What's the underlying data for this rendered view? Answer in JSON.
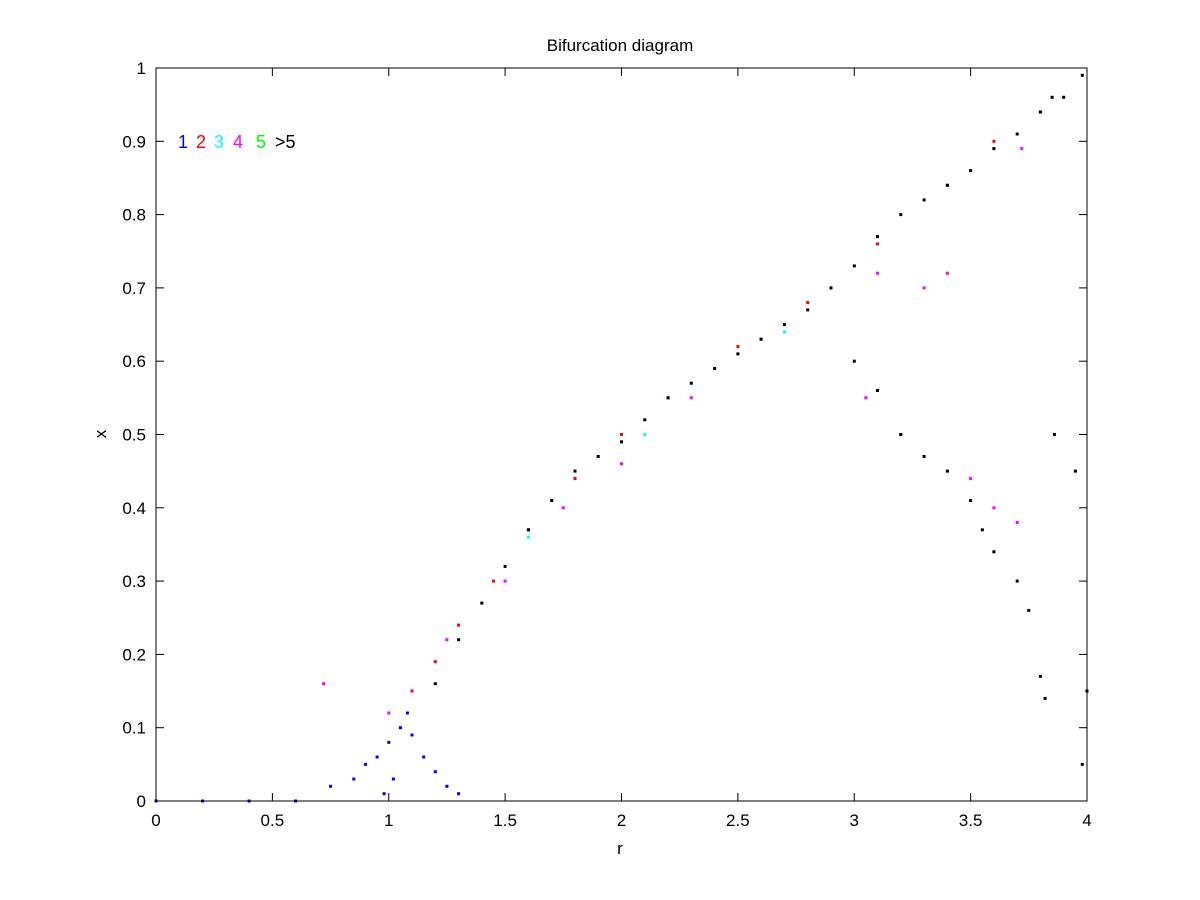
{
  "chart_data": {
    "type": "scatter",
    "title": "Bifurcation diagram",
    "xlabel": "r",
    "ylabel": "x",
    "xlim": [
      0,
      4
    ],
    "ylim": [
      0,
      1
    ],
    "x_ticks": [
      "0",
      "0.5",
      "1",
      "1.5",
      "2",
      "2.5",
      "3",
      "3.5",
      "4"
    ],
    "y_ticks": [
      "0",
      "0.1",
      "0.2",
      "0.3",
      "0.4",
      "0.5",
      "0.6",
      "0.7",
      "0.8",
      "0.9",
      "1"
    ],
    "grid": false,
    "legend_position": "top-left",
    "legend": [
      {
        "label": "1",
        "color": "#0000ff"
      },
      {
        "label": "2",
        "color": "#ff0000"
      },
      {
        "label": "3",
        "color": "#00ffff"
      },
      {
        "label": "4",
        "color": "#ff00ff"
      },
      {
        "label": "5",
        "color": "#00ff00"
      },
      {
        "label": ">5",
        "color": "#000000"
      }
    ],
    "series": [
      {
        "color": "#0000ff",
        "points": [
          [
            0,
            0
          ],
          [
            0.2,
            0
          ],
          [
            0.4,
            0
          ],
          [
            0.6,
            0
          ],
          [
            0.75,
            0.02
          ],
          [
            0.85,
            0.03
          ],
          [
            0.9,
            0.05
          ],
          [
            0.95,
            0.06
          ],
          [
            1.0,
            0.08
          ],
          [
            1.02,
            0.03
          ],
          [
            1.05,
            0.1
          ],
          [
            1.1,
            0.09
          ],
          [
            1.15,
            0.06
          ],
          [
            1.2,
            0.04
          ],
          [
            1.25,
            0.02
          ],
          [
            1.3,
            0.01
          ],
          [
            0.98,
            0.01
          ],
          [
            1.08,
            0.12
          ]
        ]
      },
      {
        "color": "#ff0000",
        "points": [
          [
            1.1,
            0.15
          ],
          [
            1.2,
            0.19
          ],
          [
            1.3,
            0.24
          ],
          [
            1.45,
            0.3
          ],
          [
            1.6,
            0.37
          ],
          [
            1.8,
            0.44
          ],
          [
            2.0,
            0.5
          ],
          [
            2.2,
            0.55
          ],
          [
            2.5,
            0.62
          ],
          [
            2.8,
            0.68
          ],
          [
            3.1,
            0.76
          ],
          [
            3.4,
            0.84
          ],
          [
            3.6,
            0.9
          ]
        ]
      },
      {
        "color": "#ff00ff",
        "points": [
          [
            0.72,
            0.16
          ],
          [
            1.0,
            0.12
          ],
          [
            1.25,
            0.22
          ],
          [
            1.5,
            0.3
          ],
          [
            1.75,
            0.4
          ],
          [
            2.0,
            0.46
          ],
          [
            2.3,
            0.55
          ],
          [
            2.6,
            0.63
          ],
          [
            2.9,
            0.7
          ],
          [
            3.1,
            0.72
          ],
          [
            3.3,
            0.7
          ],
          [
            3.4,
            0.72
          ],
          [
            3.05,
            0.55
          ],
          [
            3.2,
            0.5
          ],
          [
            3.5,
            0.44
          ],
          [
            3.6,
            0.4
          ],
          [
            3.7,
            0.38
          ],
          [
            3.72,
            0.89
          ]
        ]
      },
      {
        "color": "#00ffff",
        "points": [
          [
            1.6,
            0.36
          ],
          [
            2.1,
            0.5
          ],
          [
            2.7,
            0.64
          ]
        ]
      },
      {
        "color": "#00ff00",
        "points": []
      },
      {
        "color": "#000000",
        "points": [
          [
            1.2,
            0.16
          ],
          [
            1.3,
            0.22
          ],
          [
            1.4,
            0.27
          ],
          [
            1.5,
            0.32
          ],
          [
            1.6,
            0.37
          ],
          [
            1.7,
            0.41
          ],
          [
            1.8,
            0.45
          ],
          [
            1.9,
            0.47
          ],
          [
            2.0,
            0.49
          ],
          [
            2.1,
            0.52
          ],
          [
            2.2,
            0.55
          ],
          [
            2.3,
            0.57
          ],
          [
            2.4,
            0.59
          ],
          [
            2.5,
            0.61
          ],
          [
            2.6,
            0.63
          ],
          [
            2.7,
            0.65
          ],
          [
            2.8,
            0.67
          ],
          [
            2.9,
            0.7
          ],
          [
            3.0,
            0.73
          ],
          [
            3.1,
            0.77
          ],
          [
            3.2,
            0.8
          ],
          [
            3.3,
            0.82
          ],
          [
            3.4,
            0.84
          ],
          [
            3.5,
            0.86
          ],
          [
            3.6,
            0.89
          ],
          [
            3.7,
            0.91
          ],
          [
            3.8,
            0.94
          ],
          [
            3.85,
            0.96
          ],
          [
            3.9,
            0.96
          ],
          [
            3.98,
            0.99
          ],
          [
            3.0,
            0.6
          ],
          [
            3.1,
            0.56
          ],
          [
            3.2,
            0.5
          ],
          [
            3.3,
            0.47
          ],
          [
            3.4,
            0.45
          ],
          [
            3.5,
            0.41
          ],
          [
            3.55,
            0.37
          ],
          [
            3.6,
            0.34
          ],
          [
            3.7,
            0.3
          ],
          [
            3.75,
            0.26
          ],
          [
            3.8,
            0.17
          ],
          [
            3.82,
            0.14
          ],
          [
            3.86,
            0.5
          ],
          [
            3.95,
            0.45
          ],
          [
            3.98,
            0.05
          ],
          [
            4.0,
            0.15
          ]
        ]
      }
    ]
  }
}
